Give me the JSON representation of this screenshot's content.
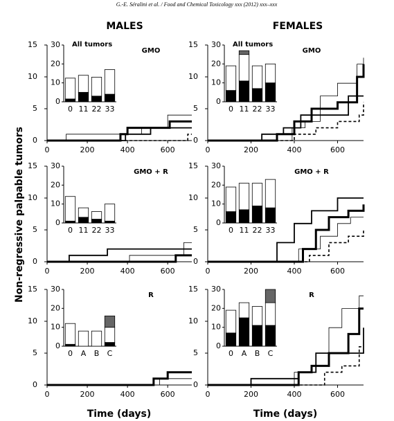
{
  "header": "G.-E. Séralini et al. / Food and Chemical Toxicology xxx (2012) xxx–xxx",
  "columns": [
    "MALES",
    "FEMALES"
  ],
  "ylabel": "Non-regressive palpable tumors",
  "xlabel": "Time (days)",
  "chart_data": [
    {
      "type": "line",
      "step": true,
      "label": "GMO",
      "xlim": [
        0,
        720
      ],
      "ylim": [
        0,
        15
      ],
      "xticks": [
        0,
        200,
        400,
        600
      ],
      "yticks": [
        0,
        5,
        10,
        15
      ],
      "series": [
        {
          "color": "#000000",
          "style": "thin",
          "x": [
            0,
            95,
            470,
            600,
            720
          ],
          "values": [
            0,
            1,
            2,
            4,
            4
          ]
        },
        {
          "color": "#000000",
          "style": "thick",
          "x": [
            0,
            365,
            400,
            610,
            720
          ],
          "values": [
            0,
            1,
            2,
            3,
            3
          ]
        },
        {
          "color": "#000000",
          "style": "medium",
          "x": [
            0,
            390,
            515,
            720
          ],
          "values": [
            0,
            1,
            2,
            2
          ]
        },
        {
          "color": "#000000",
          "style": "dashed",
          "x": [
            0,
            700,
            720
          ],
          "values": [
            0,
            1,
            1
          ]
        }
      ],
      "inset": {
        "type": "bar",
        "stacked": true,
        "title": "All tumors",
        "categories": [
          "0",
          "11",
          "22",
          "33"
        ],
        "ylim": [
          0,
          30
        ],
        "yticks": [
          0,
          10,
          20,
          30
        ],
        "series": [
          {
            "color": "#000000",
            "values": [
              1.5,
              5,
              3,
              4
            ]
          },
          {
            "color": "#ffffff",
            "values": [
              11,
              9,
              10,
              13
            ]
          },
          {
            "color": "#666666",
            "values": [
              0,
              0,
              0,
              0
            ]
          }
        ]
      }
    },
    {
      "type": "line",
      "step": true,
      "label": "GMO",
      "xlim": [
        0,
        720
      ],
      "ylim": [
        0,
        15
      ],
      "xticks": [
        0,
        200,
        400,
        600
      ],
      "yticks": [
        0,
        5,
        10,
        15
      ],
      "series": [
        {
          "color": "#000000",
          "style": "thin",
          "x": [
            0,
            390,
            450,
            520,
            600,
            690,
            720
          ],
          "values": [
            0,
            2,
            3,
            7,
            9,
            12,
            13
          ]
        },
        {
          "color": "#000000",
          "style": "thick",
          "x": [
            0,
            320,
            400,
            480,
            600,
            690,
            720
          ],
          "values": [
            0,
            1,
            3,
            5,
            6,
            10,
            12
          ]
        },
        {
          "color": "#000000",
          "style": "medium",
          "x": [
            0,
            250,
            350,
            430,
            650,
            720
          ],
          "values": [
            0,
            1,
            2,
            4,
            7,
            7
          ]
        },
        {
          "color": "#000000",
          "style": "dashed",
          "x": [
            0,
            400,
            500,
            600,
            700,
            720
          ],
          "values": [
            0,
            1,
            2,
            3,
            4,
            6
          ]
        }
      ],
      "inset": {
        "type": "bar",
        "stacked": true,
        "title": "All tumors",
        "categories": [
          "0",
          "11",
          "22",
          "33"
        ],
        "ylim": [
          0,
          30
        ],
        "yticks": [
          0,
          10,
          20,
          30
        ],
        "series": [
          {
            "color": "#000000",
            "values": [
              6,
              11,
              7,
              10
            ]
          },
          {
            "color": "#ffffff",
            "values": [
              13,
              14,
              12,
              10
            ]
          },
          {
            "color": "#666666",
            "values": [
              0,
              2,
              0,
              0
            ]
          }
        ]
      }
    },
    {
      "type": "line",
      "step": true,
      "label": "GMO + R",
      "xlim": [
        0,
        720
      ],
      "ylim": [
        0,
        15
      ],
      "xticks": [
        0,
        200,
        400,
        600
      ],
      "yticks": [
        0,
        5,
        10,
        15
      ],
      "series": [
        {
          "color": "#000000",
          "style": "thin",
          "x": [
            0,
            410,
            680,
            720
          ],
          "values": [
            0,
            1,
            3,
            3
          ]
        },
        {
          "color": "#000000",
          "style": "medium",
          "x": [
            0,
            110,
            300,
            720
          ],
          "values": [
            0,
            1,
            2,
            2
          ]
        },
        {
          "color": "#000000",
          "style": "thick",
          "x": [
            0,
            640,
            720
          ],
          "values": [
            0,
            1,
            1
          ]
        }
      ],
      "inset": {
        "type": "bar",
        "stacked": true,
        "categories": [
          "0",
          "11",
          "22",
          "33"
        ],
        "ylim": [
          0,
          30
        ],
        "yticks": [
          0,
          10,
          20,
          30
        ],
        "series": [
          {
            "color": "#000000",
            "values": [
              1,
              3,
              2,
              1
            ]
          },
          {
            "color": "#ffffff",
            "values": [
              13,
              5,
              4,
              9
            ]
          },
          {
            "color": "#666666",
            "values": [
              0,
              0,
              0,
              0
            ]
          }
        ]
      }
    },
    {
      "type": "line",
      "step": true,
      "label": "GMO + R",
      "xlim": [
        0,
        720
      ],
      "ylim": [
        0,
        15
      ],
      "xticks": [
        0,
        200,
        400,
        600
      ],
      "yticks": [
        0,
        5,
        10,
        15
      ],
      "series": [
        {
          "color": "#000000",
          "style": "thin",
          "x": [
            0,
            420,
            520,
            600,
            660,
            720
          ],
          "values": [
            0,
            2,
            4,
            6,
            7,
            7
          ]
        },
        {
          "color": "#000000",
          "style": "thick",
          "x": [
            0,
            440,
            500,
            560,
            650,
            720
          ],
          "values": [
            0,
            2,
            5,
            7,
            8,
            9
          ]
        },
        {
          "color": "#000000",
          "style": "medium",
          "x": [
            0,
            320,
            400,
            480,
            600,
            720
          ],
          "values": [
            0,
            3,
            6,
            8,
            10,
            10
          ]
        },
        {
          "color": "#000000",
          "style": "dashed",
          "x": [
            0,
            470,
            560,
            650,
            720
          ],
          "values": [
            0,
            1,
            3,
            4,
            5
          ]
        }
      ],
      "inset": {
        "type": "bar",
        "stacked": true,
        "categories": [
          "0",
          "11",
          "22",
          "33"
        ],
        "ylim": [
          0,
          30
        ],
        "yticks": [
          0,
          10,
          20,
          30
        ],
        "series": [
          {
            "color": "#000000",
            "values": [
              6,
              7,
              9,
              8
            ]
          },
          {
            "color": "#ffffff",
            "values": [
              13,
              14,
              12,
              15
            ]
          },
          {
            "color": "#666666",
            "values": [
              0,
              0,
              0,
              0
            ]
          }
        ]
      }
    },
    {
      "type": "line",
      "step": true,
      "label": "R",
      "xlim": [
        0,
        720
      ],
      "ylim": [
        0,
        15
      ],
      "xticks": [
        0,
        200,
        400,
        600
      ],
      "yticks": [
        0,
        5,
        10,
        15
      ],
      "series": [
        {
          "color": "#000000",
          "style": "thin",
          "x": [
            0,
            560,
            720
          ],
          "values": [
            0,
            1,
            1
          ]
        },
        {
          "color": "#000000",
          "style": "thick",
          "x": [
            0,
            530,
            600,
            720
          ],
          "values": [
            0,
            1,
            2,
            2
          ]
        }
      ],
      "inset": {
        "type": "bar",
        "stacked": true,
        "categories": [
          "0",
          "A",
          "B",
          "C"
        ],
        "ylim": [
          0,
          30
        ],
        "yticks": [
          0,
          10,
          20,
          30
        ],
        "series": [
          {
            "color": "#000000",
            "values": [
              1,
              0,
              0,
              2
            ]
          },
          {
            "color": "#ffffff",
            "values": [
              11,
              8,
              8,
              8
            ]
          },
          {
            "color": "#666666",
            "values": [
              0,
              0,
              0,
              6
            ]
          }
        ]
      }
    },
    {
      "type": "line",
      "step": true,
      "label": "R",
      "xlim": [
        0,
        720
      ],
      "ylim": [
        0,
        15
      ],
      "xticks": [
        0,
        200,
        400,
        600
      ],
      "yticks": [
        0,
        5,
        10,
        15
      ],
      "series": [
        {
          "color": "#000000",
          "style": "thin",
          "x": [
            0,
            400,
            500,
            560,
            620,
            700,
            720
          ],
          "values": [
            0,
            2,
            5,
            9,
            12,
            14,
            14
          ]
        },
        {
          "color": "#000000",
          "style": "thick",
          "x": [
            0,
            420,
            480,
            560,
            650,
            700,
            720
          ],
          "values": [
            0,
            2,
            3,
            5,
            8,
            12,
            12
          ]
        },
        {
          "color": "#000000",
          "style": "medium",
          "x": [
            0,
            200,
            420,
            500,
            600,
            720
          ],
          "values": [
            0,
            1,
            2,
            5,
            5,
            9
          ]
        },
        {
          "color": "#000000",
          "style": "dashed",
          "x": [
            0,
            540,
            620,
            700,
            720
          ],
          "values": [
            0,
            2,
            3,
            6,
            6
          ]
        }
      ],
      "inset": {
        "type": "bar",
        "stacked": true,
        "categories": [
          "0",
          "A",
          "B",
          "C"
        ],
        "ylim": [
          0,
          30
        ],
        "yticks": [
          0,
          10,
          20,
          30
        ],
        "series": [
          {
            "color": "#000000",
            "values": [
              7,
              15,
              11,
              11
            ]
          },
          {
            "color": "#ffffff",
            "values": [
              12,
              8,
              10,
              12
            ]
          },
          {
            "color": "#666666",
            "values": [
              0,
              0,
              0,
              7
            ]
          }
        ]
      }
    }
  ]
}
